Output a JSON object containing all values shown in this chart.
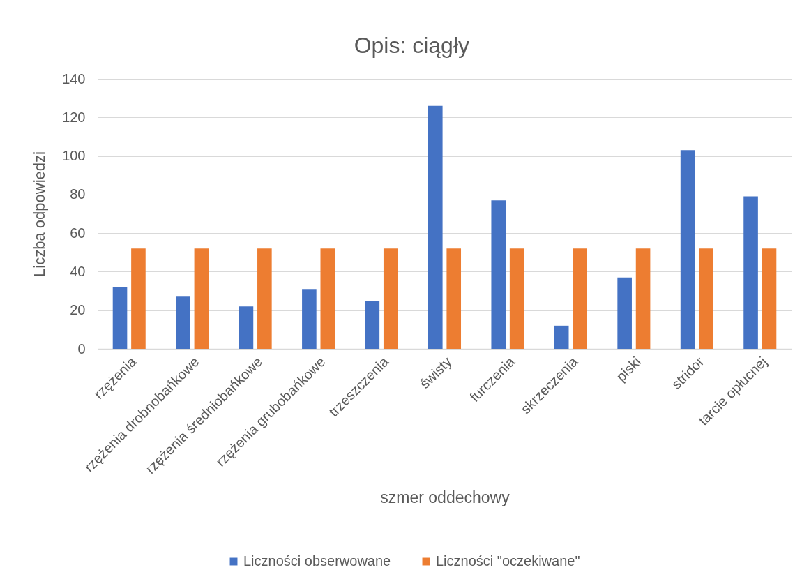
{
  "chart_data": {
    "type": "bar",
    "title": "Opis: ciągły",
    "xlabel": "szmer oddechowy",
    "ylabel": "Liczba odpowiedzi",
    "categories": [
      "rzężenia",
      "rzężenia drobnobańkowe",
      "rzężenia średniobańkowe",
      "rzężenia grubobańkowe",
      "trzeszczenia",
      "świsty",
      "furczenia",
      "skrzeczenia",
      "piski",
      "stridor",
      "tarcie opłucnej"
    ],
    "series": [
      {
        "name": "Liczności obserwowane",
        "color": "#4472c4",
        "values": [
          32,
          27,
          22,
          31,
          25,
          126,
          77,
          12,
          37,
          103,
          79
        ]
      },
      {
        "name": "Liczności \"oczekiwane\"",
        "color": "#ed7d31",
        "values": [
          52,
          52,
          52,
          52,
          52,
          52,
          52,
          52,
          52,
          52,
          52
        ]
      }
    ],
    "ylim": [
      0,
      140
    ],
    "yticks": [
      0,
      20,
      40,
      60,
      80,
      100,
      120,
      140
    ],
    "grid": "y",
    "legend": "bottom"
  }
}
